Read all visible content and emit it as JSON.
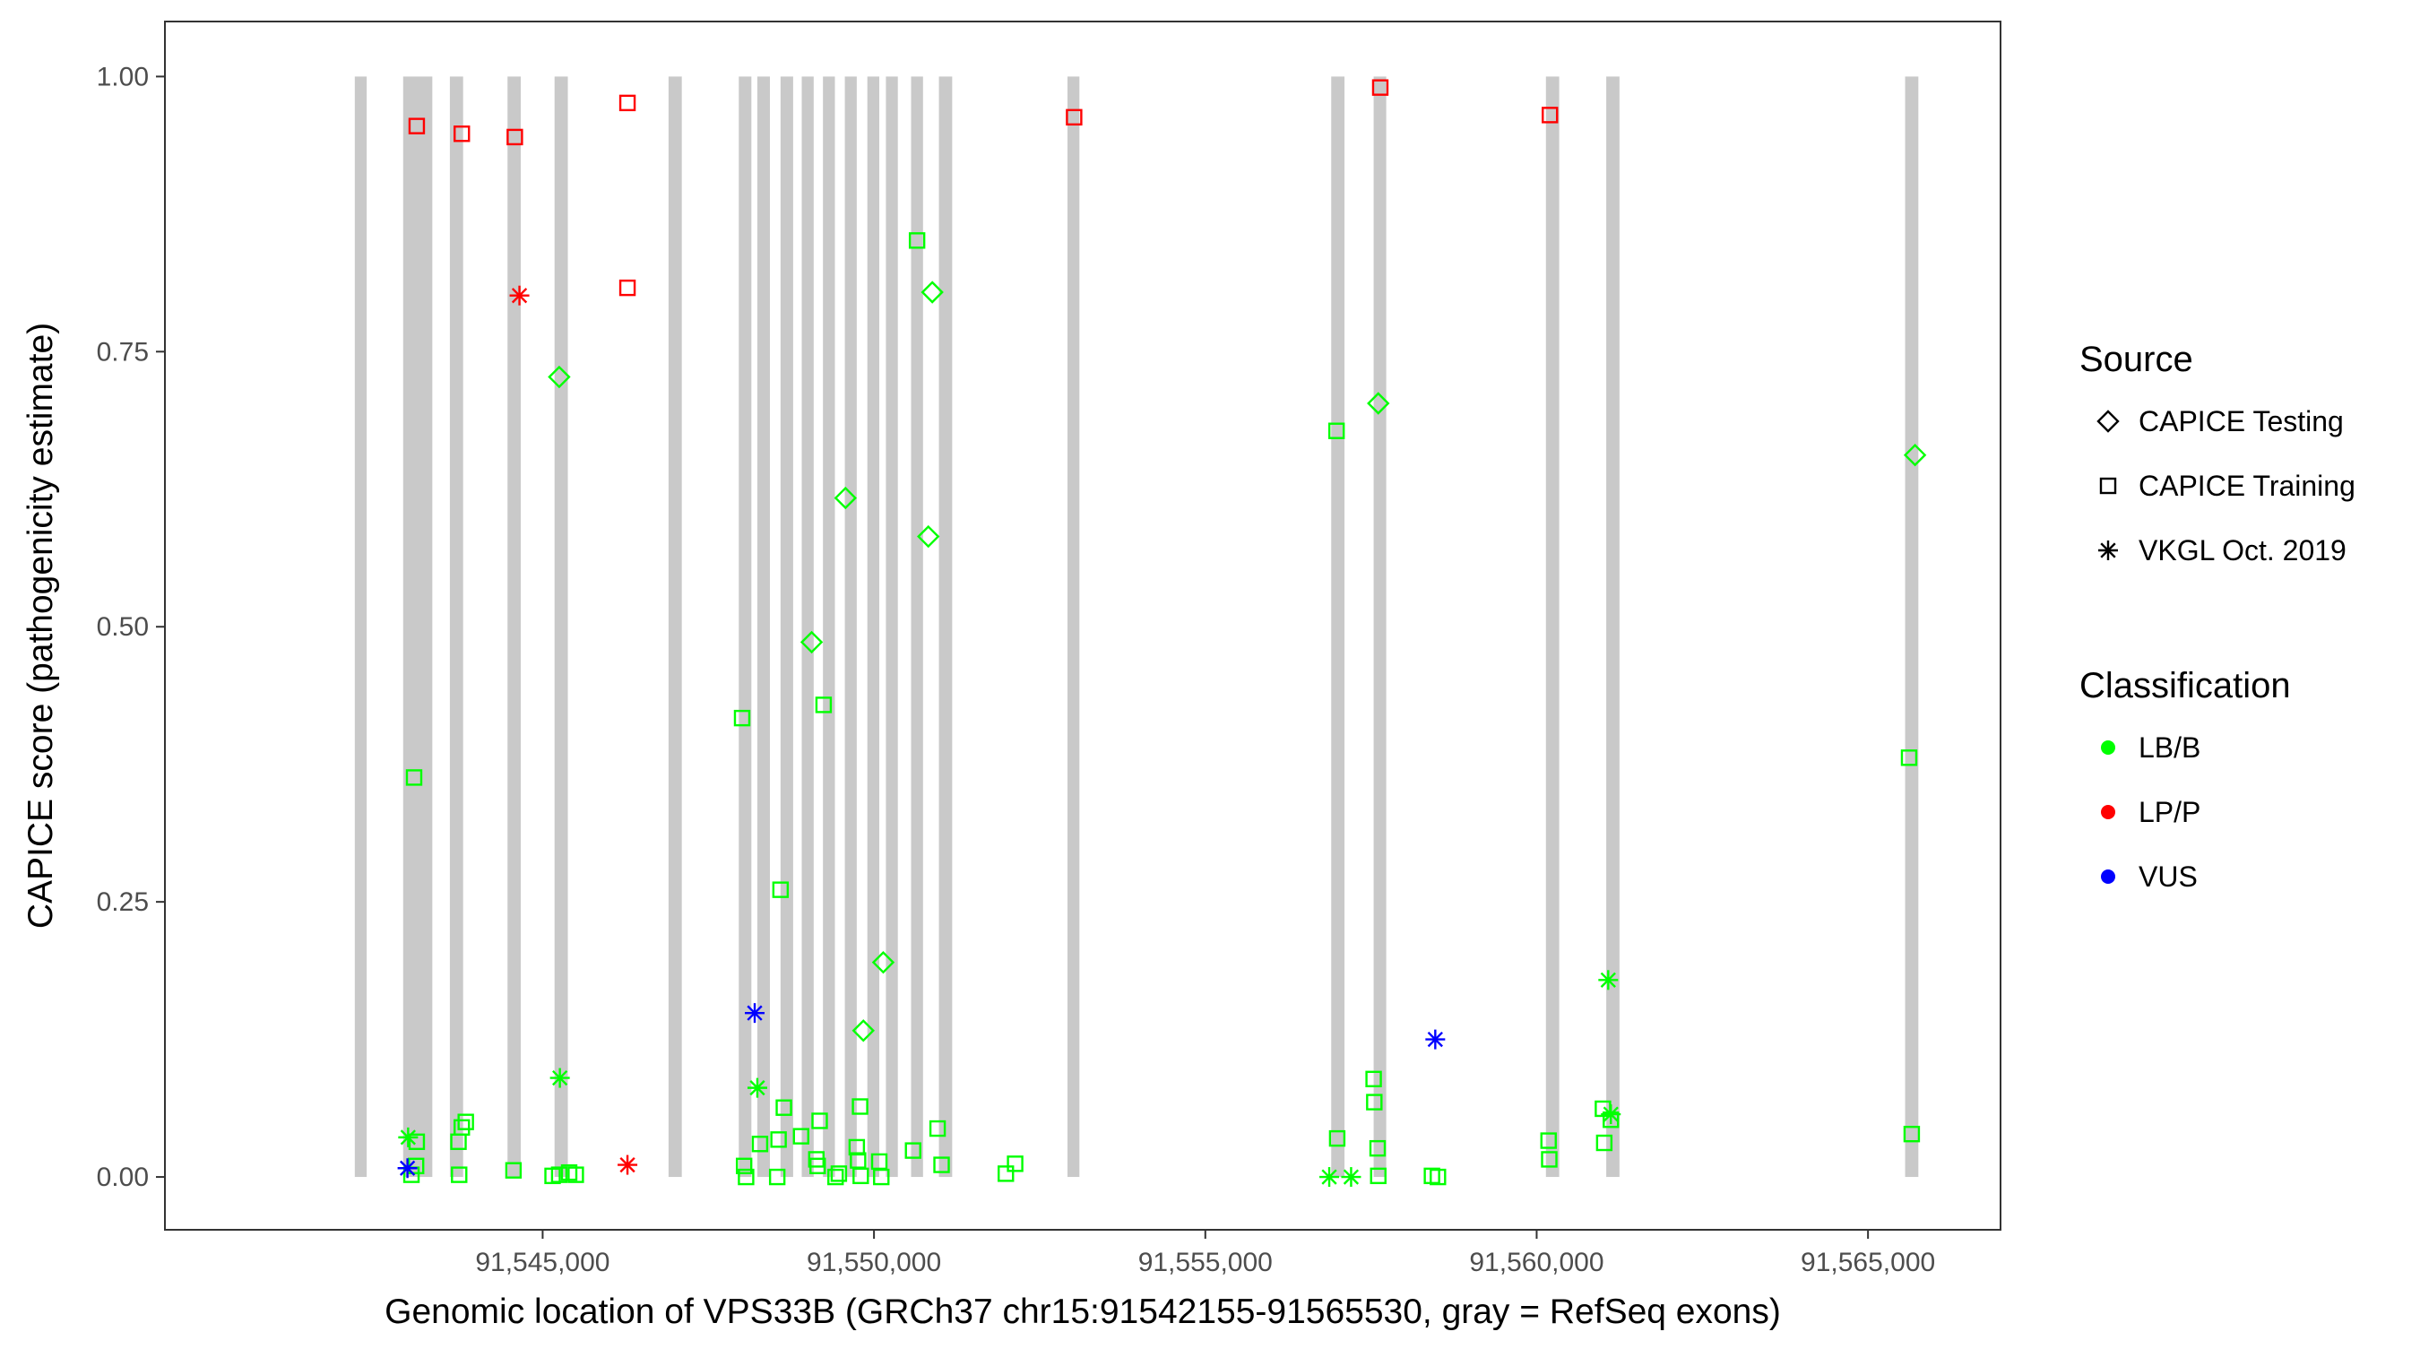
{
  "chart_data": {
    "type": "scatter",
    "title": "",
    "xlabel": "Genomic location of VPS33B (GRCh37 chr15:91542155-91565530, gray = RefSeq exons)",
    "ylabel": "CAPICE score (pathogenicity estimate)",
    "xlim": [
      91539300,
      91567000
    ],
    "ylim": [
      -0.048,
      1.05
    ],
    "x_ticks": [
      91545000,
      91550000,
      91555000,
      91560000,
      91565000
    ],
    "x_tick_labels": [
      "91,545,000",
      "91,550,000",
      "91,555,000",
      "91,560,000",
      "91,565,000"
    ],
    "y_ticks": [
      0,
      0.25,
      0.5,
      0.75,
      1.0
    ],
    "y_tick_labels": [
      "0.00",
      "0.25",
      "0.50",
      "0.75",
      "1.00"
    ],
    "grid": false,
    "legend_position": "right",
    "exons": [
      [
        91542165,
        91542345
      ],
      [
        91542895,
        91543335
      ],
      [
        91543600,
        91543800
      ],
      [
        91544470,
        91544670
      ],
      [
        91545180,
        91545380
      ],
      [
        91546900,
        91547100
      ],
      [
        91547960,
        91548150
      ],
      [
        91548240,
        91548430
      ],
      [
        91548590,
        91548780
      ],
      [
        91548910,
        91549090
      ],
      [
        91549230,
        91549410
      ],
      [
        91549560,
        91549740
      ],
      [
        91549900,
        91550080
      ],
      [
        91550180,
        91550360
      ],
      [
        91550560,
        91550740
      ],
      [
        91550980,
        91551180
      ],
      [
        91552920,
        91553100
      ],
      [
        91556900,
        91557100
      ],
      [
        91557540,
        91557730
      ],
      [
        91560140,
        91560340
      ],
      [
        91561050,
        91561250
      ],
      [
        91565560,
        91565760
      ]
    ],
    "legend": {
      "source_title": "Source",
      "source_entries": [
        {
          "label": "CAPICE Testing",
          "shape": "diamond"
        },
        {
          "label": "CAPICE Training",
          "shape": "square"
        },
        {
          "label": "VKGL Oct. 2019",
          "shape": "asterisk"
        }
      ],
      "class_title": "Classification",
      "class_entries": [
        {
          "label": "LB/B",
          "color": "#00ff00"
        },
        {
          "label": "LP/P",
          "color": "#ff0000"
        },
        {
          "label": "VUS",
          "color": "#0000ff"
        }
      ]
    },
    "series": [
      {
        "source": "CAPICE Training",
        "class": "LP/P",
        "points": [
          [
            91543100,
            0.955
          ],
          [
            91543780,
            0.948
          ],
          [
            91544580,
            0.945
          ],
          [
            91546280,
            0.976
          ],
          [
            91546280,
            0.808
          ],
          [
            91553020,
            0.963
          ],
          [
            91557640,
            0.99
          ],
          [
            91560200,
            0.965
          ]
        ]
      },
      {
        "source": "VKGL Oct. 2019",
        "class": "LP/P",
        "points": [
          [
            91544650,
            0.801
          ],
          [
            91546280,
            0.011
          ]
        ]
      },
      {
        "source": "CAPICE Training",
        "class": "LB/B",
        "points": [
          [
            91543060,
            0.363
          ],
          [
            91543100,
            0.032
          ],
          [
            91543020,
            0.002
          ],
          [
            91543090,
            0.01
          ],
          [
            91543730,
            0.032
          ],
          [
            91543780,
            0.045
          ],
          [
            91543840,
            0.05
          ],
          [
            91543740,
            0.002
          ],
          [
            91544560,
            0.006
          ],
          [
            91545150,
            0.001
          ],
          [
            91545250,
            0.002
          ],
          [
            91545400,
            0.004
          ],
          [
            91545500,
            0.002
          ],
          [
            91548010,
            0.417
          ],
          [
            91548040,
            0.01
          ],
          [
            91548070,
            0.0
          ],
          [
            91548280,
            0.03
          ],
          [
            91548540,
            0.0
          ],
          [
            91548560,
            0.034
          ],
          [
            91548640,
            0.063
          ],
          [
            91548590,
            0.261
          ],
          [
            91548900,
            0.037
          ],
          [
            91549130,
            0.016
          ],
          [
            91549150,
            0.01
          ],
          [
            91549180,
            0.051
          ],
          [
            91549240,
            0.429
          ],
          [
            91549420,
            0.0
          ],
          [
            91549470,
            0.003
          ],
          [
            91549740,
            0.027
          ],
          [
            91549760,
            0.015
          ],
          [
            91549790,
            0.064
          ],
          [
            91549800,
            0.001
          ],
          [
            91550080,
            0.014
          ],
          [
            91550110,
            0.0
          ],
          [
            91550590,
            0.024
          ],
          [
            91550650,
            0.851
          ],
          [
            91550960,
            0.044
          ],
          [
            91551020,
            0.011
          ],
          [
            91551990,
            0.003
          ],
          [
            91552130,
            0.012
          ],
          [
            91556980,
            0.678
          ],
          [
            91556990,
            0.035
          ],
          [
            91557540,
            0.089
          ],
          [
            91557550,
            0.068
          ],
          [
            91557600,
            0.026
          ],
          [
            91557610,
            0.001
          ],
          [
            91558420,
            0.001
          ],
          [
            91558510,
            0.0
          ],
          [
            91560180,
            0.033
          ],
          [
            91560190,
            0.016
          ],
          [
            91561000,
            0.062
          ],
          [
            91561020,
            0.031
          ],
          [
            91561120,
            0.052
          ],
          [
            91565620,
            0.381
          ],
          [
            91565660,
            0.039
          ]
        ]
      },
      {
        "source": "CAPICE Testing",
        "class": "LB/B",
        "points": [
          [
            91545250,
            0.727
          ],
          [
            91549570,
            0.617
          ],
          [
            91549060,
            0.486
          ],
          [
            91550880,
            0.804
          ],
          [
            91550820,
            0.582
          ],
          [
            91550140,
            0.195
          ],
          [
            91549840,
            0.133
          ],
          [
            91557610,
            0.703
          ],
          [
            91565710,
            0.656
          ]
        ]
      },
      {
        "source": "VKGL Oct. 2019",
        "class": "LB/B",
        "points": [
          [
            91542970,
            0.036
          ],
          [
            91545260,
            0.09
          ],
          [
            91548240,
            0.081
          ],
          [
            91556870,
            0.0
          ],
          [
            91557200,
            0.0
          ],
          [
            91561080,
            0.179
          ],
          [
            91561120,
            0.057
          ]
        ]
      },
      {
        "source": "CAPICE Training",
        "class": "VUS",
        "points": []
      },
      {
        "source": "VKGL Oct. 2019",
        "class": "VUS",
        "points": [
          [
            91542960,
            0.008
          ],
          [
            91548200,
            0.149
          ],
          [
            91558470,
            0.125
          ]
        ]
      }
    ]
  }
}
